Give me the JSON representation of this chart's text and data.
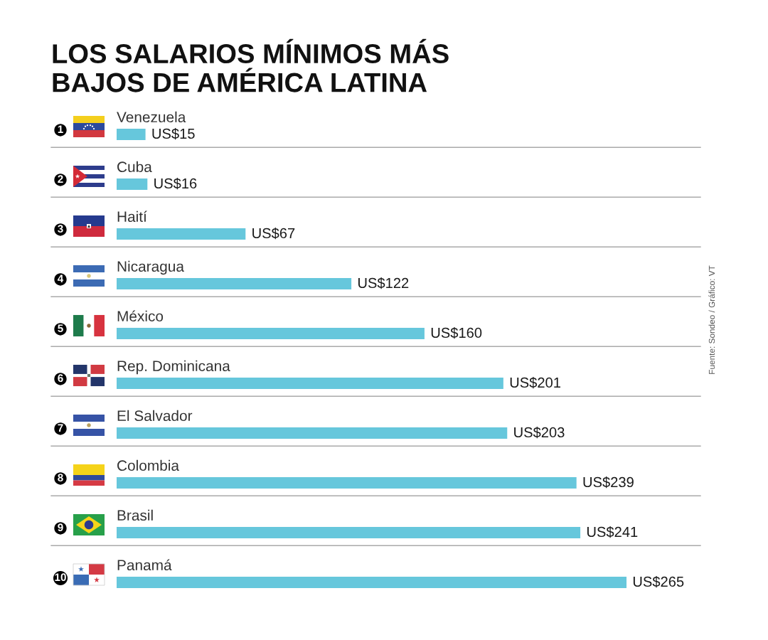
{
  "chart_data": {
    "type": "bar",
    "orientation": "horizontal",
    "title": "LOS SALARIOS MÍNIMOS MÁS\nBAJOS DE AMÉRICA LATINA",
    "categories": [
      "Venezuela",
      "Cuba",
      "Haití",
      "Nicaragua",
      "México",
      "Rep. Dominicana",
      "El Salvador",
      "Colombia",
      "Brasil",
      "Panamá"
    ],
    "values": [
      15,
      16,
      67,
      122,
      160,
      201,
      203,
      239,
      241,
      265
    ],
    "value_labels": [
      "US$15",
      "US$16",
      "US$67",
      "US$122",
      "US$160",
      "US$201",
      "US$203",
      "US$239",
      "US$241",
      "US$265"
    ],
    "color": "#66c7dc",
    "grid": "y",
    "tick_labels": "y",
    "annotations": [
      "1",
      "2",
      "3",
      "4",
      "5",
      "6",
      "7",
      "8",
      "9",
      "10",
      "Fuente: Sondeo / Gráfico: VT"
    ]
  }
}
